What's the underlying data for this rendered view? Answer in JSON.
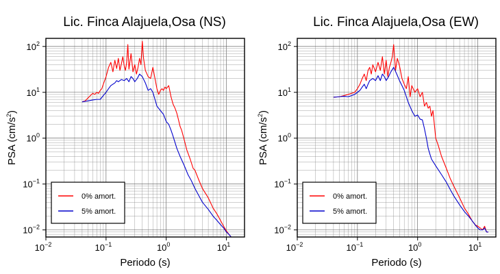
{
  "chart_data": [
    {
      "type": "line",
      "title": "Lic. Finca Alajuela,Osa (NS)",
      "xlabel": "Periodo (s)",
      "ylabel_base": "PSA (cm/s",
      "ylabel_sup": "2",
      "ylabel_close": ")",
      "xscale": "log",
      "yscale": "log",
      "xlim": [
        0.01,
        20
      ],
      "ylim": [
        0.007,
        150
      ],
      "x_ticks": [
        {
          "base": "10",
          "exp": "−2",
          "value": 0.01
        },
        {
          "base": "10",
          "exp": "−1",
          "value": 0.1
        },
        {
          "base": "10",
          "exp": "0",
          "value": 1
        },
        {
          "base": "10",
          "exp": "1",
          "value": 10
        }
      ],
      "y_ticks": [
        {
          "base": "10",
          "exp": "−2",
          "value": 0.01
        },
        {
          "base": "10",
          "exp": "−1",
          "value": 0.1
        },
        {
          "base": "10",
          "exp": "0",
          "value": 1
        },
        {
          "base": "10",
          "exp": "1",
          "value": 10
        },
        {
          "base": "10",
          "exp": "2",
          "value": 100
        }
      ],
      "grid": true,
      "legend_placement": "bottom-left",
      "series": [
        {
          "name": "0% amort.",
          "color": "#ff0000",
          "x": [
            0.04,
            0.045,
            0.05,
            0.055,
            0.06,
            0.065,
            0.07,
            0.075,
            0.08,
            0.085,
            0.09,
            0.1,
            0.11,
            0.12,
            0.13,
            0.14,
            0.15,
            0.16,
            0.17,
            0.18,
            0.19,
            0.2,
            0.21,
            0.22,
            0.23,
            0.24,
            0.26,
            0.28,
            0.3,
            0.32,
            0.34,
            0.36,
            0.38,
            0.4,
            0.42,
            0.45,
            0.5,
            0.55,
            0.6,
            0.65,
            0.7,
            0.75,
            0.8,
            0.85,
            0.9,
            0.95,
            1.0,
            1.1,
            1.2,
            1.3,
            1.4,
            1.5,
            1.6,
            1.7,
            1.8,
            2.0,
            2.2,
            2.5,
            2.8,
            3.0,
            3.5,
            4.0,
            5.0,
            6.0,
            7.0,
            8.0,
            9.0,
            10.0,
            11.0,
            12.0
          ],
          "y": [
            6.2,
            6.5,
            7.5,
            8.5,
            9.5,
            9.0,
            10.0,
            9.5,
            11.0,
            12.0,
            15.0,
            22.0,
            35.0,
            45.0,
            28.0,
            50.0,
            33.0,
            55.0,
            30.0,
            42.0,
            60.0,
            38.0,
            30.0,
            45.0,
            110.0,
            32.0,
            70.0,
            28.0,
            40.0,
            25.0,
            35.0,
            55.0,
            40.0,
            130.0,
            55.0,
            30.0,
            22.0,
            20.0,
            35.0,
            20.0,
            12.0,
            9.0,
            11.0,
            12.0,
            11.0,
            13.0,
            12.0,
            14.0,
            8.0,
            5.5,
            4.5,
            3.5,
            2.5,
            1.8,
            1.5,
            0.9,
            0.55,
            0.35,
            0.22,
            0.2,
            0.12,
            0.08,
            0.05,
            0.03,
            0.022,
            0.016,
            0.012,
            0.0095,
            0.008,
            0.007
          ]
        },
        {
          "name": "5% amort.",
          "color": "#0000cc",
          "x": [
            0.04,
            0.05,
            0.06,
            0.07,
            0.08,
            0.09,
            0.1,
            0.11,
            0.12,
            0.13,
            0.14,
            0.15,
            0.16,
            0.18,
            0.2,
            0.22,
            0.24,
            0.26,
            0.28,
            0.3,
            0.33,
            0.36,
            0.4,
            0.45,
            0.5,
            0.55,
            0.6,
            0.65,
            0.7,
            0.8,
            0.9,
            1.0,
            1.1,
            1.2,
            1.3,
            1.5,
            1.7,
            2.0,
            2.3,
            2.6,
            3.0,
            3.5,
            4.0,
            5.0,
            6.0,
            7.0,
            8.0,
            9.0,
            10.0,
            11.0,
            12.0
          ],
          "y": [
            6.2,
            6.5,
            6.8,
            7.0,
            7.0,
            8.5,
            10.0,
            12.0,
            14.0,
            15.0,
            16.0,
            18.0,
            17.0,
            19.0,
            18.0,
            20.0,
            17.0,
            22.0,
            20.0,
            17.0,
            20.0,
            25.0,
            22.0,
            16.0,
            11.0,
            12.0,
            10.0,
            7.0,
            5.0,
            4.0,
            3.3,
            2.3,
            2.0,
            1.5,
            1.1,
            0.6,
            0.4,
            0.25,
            0.16,
            0.12,
            0.08,
            0.055,
            0.04,
            0.028,
            0.02,
            0.016,
            0.013,
            0.011,
            0.009,
            0.008,
            0.007
          ]
        }
      ]
    },
    {
      "type": "line",
      "title": "Lic. Finca Alajuela,Osa (EW)",
      "xlabel": "Periodo (s)",
      "ylabel_base": "PSA (cm/s",
      "ylabel_sup": "2",
      "ylabel_close": ")",
      "xscale": "log",
      "yscale": "log",
      "xlim": [
        0.01,
        20
      ],
      "ylim": [
        0.007,
        150
      ],
      "x_ticks": [
        {
          "base": "10",
          "exp": "−2",
          "value": 0.01
        },
        {
          "base": "10",
          "exp": "−1",
          "value": 0.1
        },
        {
          "base": "10",
          "exp": "0",
          "value": 1
        },
        {
          "base": "10",
          "exp": "1",
          "value": 10
        }
      ],
      "y_ticks": [
        {
          "base": "10",
          "exp": "−2",
          "value": 0.01
        },
        {
          "base": "10",
          "exp": "−1",
          "value": 0.1
        },
        {
          "base": "10",
          "exp": "0",
          "value": 1
        },
        {
          "base": "10",
          "exp": "1",
          "value": 10
        },
        {
          "base": "10",
          "exp": "2",
          "value": 100
        }
      ],
      "grid": true,
      "legend_placement": "bottom-left",
      "series": [
        {
          "name": "0% amort.",
          "color": "#ff0000",
          "x": [
            0.04,
            0.05,
            0.06,
            0.07,
            0.08,
            0.09,
            0.1,
            0.11,
            0.12,
            0.13,
            0.14,
            0.15,
            0.16,
            0.17,
            0.18,
            0.2,
            0.22,
            0.24,
            0.26,
            0.28,
            0.3,
            0.32,
            0.34,
            0.36,
            0.38,
            0.4,
            0.43,
            0.46,
            0.5,
            0.55,
            0.6,
            0.65,
            0.7,
            0.75,
            0.8,
            0.9,
            1.0,
            1.1,
            1.2,
            1.3,
            1.4,
            1.5,
            1.6,
            1.7,
            1.8,
            2.0,
            2.2,
            2.5,
            3.0,
            3.5,
            4.0,
            5.0,
            6.0,
            7.0,
            8.0,
            9.0,
            10.0,
            11.0,
            12.0,
            13.0,
            14.0,
            15.0
          ],
          "y": [
            7.8,
            8.0,
            8.5,
            9.0,
            9.5,
            10.0,
            12.0,
            15.0,
            20.0,
            25.0,
            18.0,
            30.0,
            35.0,
            25.0,
            40.0,
            28.0,
            45.0,
            30.0,
            60.0,
            25.0,
            50.0,
            22.0,
            35.0,
            45.0,
            60.0,
            110.0,
            30.0,
            55.0,
            38.0,
            20.0,
            15.0,
            12.0,
            22.0,
            8.0,
            14.0,
            10.0,
            12.0,
            8.0,
            10.0,
            5.0,
            6.0,
            4.5,
            5.0,
            3.0,
            4.0,
            1.0,
            0.7,
            0.4,
            0.22,
            0.13,
            0.09,
            0.05,
            0.03,
            0.022,
            0.016,
            0.013,
            0.012,
            0.011,
            0.01,
            0.012,
            0.009,
            0.009
          ]
        },
        {
          "name": "5% amort.",
          "color": "#0000cc",
          "x": [
            0.04,
            0.05,
            0.06,
            0.07,
            0.08,
            0.09,
            0.1,
            0.11,
            0.12,
            0.13,
            0.14,
            0.15,
            0.16,
            0.18,
            0.2,
            0.22,
            0.24,
            0.26,
            0.28,
            0.3,
            0.33,
            0.36,
            0.4,
            0.45,
            0.5,
            0.55,
            0.6,
            0.65,
            0.7,
            0.8,
            0.9,
            1.0,
            1.1,
            1.2,
            1.3,
            1.4,
            1.5,
            1.6,
            1.7,
            2.0,
            2.5,
            3.0,
            3.5,
            4.0,
            5.0,
            6.0,
            7.0,
            8.0,
            9.0,
            10.0,
            11.0,
            12.0,
            13.0,
            14.0,
            15.0
          ],
          "y": [
            7.8,
            8.0,
            8.2,
            8.0,
            8.5,
            9.0,
            10.0,
            11.0,
            13.0,
            15.0,
            12.0,
            15.0,
            18.0,
            20.0,
            18.0,
            23.0,
            18.0,
            25.0,
            22.0,
            18.0,
            22.0,
            28.0,
            35.0,
            25.0,
            18.0,
            14.0,
            11.0,
            8.0,
            6.0,
            4.0,
            3.0,
            3.2,
            2.6,
            2.5,
            1.6,
            1.0,
            0.6,
            0.45,
            0.35,
            0.25,
            0.16,
            0.11,
            0.075,
            0.055,
            0.035,
            0.025,
            0.02,
            0.016,
            0.013,
            0.011,
            0.01,
            0.01,
            0.011,
            0.009,
            0.009
          ]
        }
      ]
    }
  ]
}
